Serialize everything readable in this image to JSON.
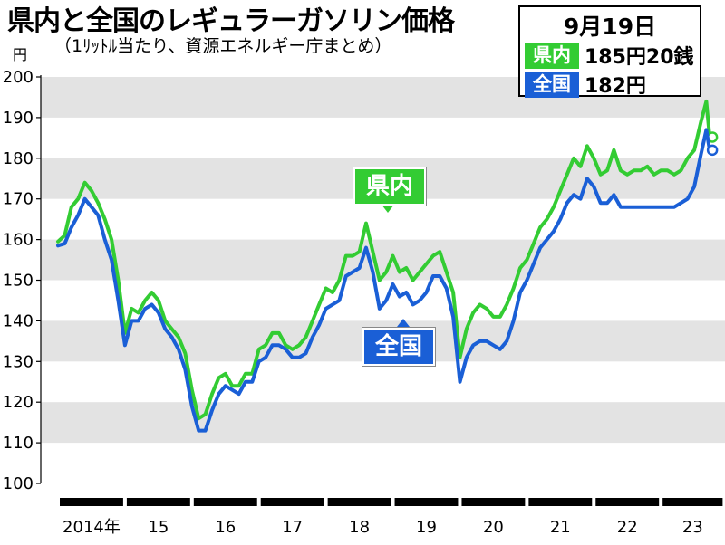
{
  "title": "県内と全国のレギュラーガソリン価格",
  "subtitle": "（1ﾘｯﾄﾙ当たり、資源エネルギー庁まとめ）",
  "unit": "円",
  "legend": {
    "date": "9月19日",
    "items": [
      {
        "name": "県内",
        "value": "185円20銭",
        "color": "#33cc33"
      },
      {
        "name": "全国",
        "value": "182円",
        "color": "#1a5fd6"
      }
    ]
  },
  "chart_data": {
    "type": "line",
    "ylim": [
      100,
      200
    ],
    "yticks": [
      100,
      110,
      120,
      130,
      140,
      150,
      160,
      170,
      180,
      190,
      200
    ],
    "xlim": [
      2014.0,
      2023.85
    ],
    "year_labels": [
      "2014年",
      "15",
      "16",
      "17",
      "18",
      "19",
      "20",
      "21",
      "22",
      "23"
    ],
    "grid": "alternating bands",
    "series": [
      {
        "name": "県内",
        "color": "#33cc33",
        "label": "県内",
        "points": [
          [
            2014.0,
            159.5
          ],
          [
            2014.1,
            161
          ],
          [
            2014.2,
            168
          ],
          [
            2014.3,
            170
          ],
          [
            2014.4,
            174
          ],
          [
            2014.5,
            172
          ],
          [
            2014.6,
            169
          ],
          [
            2014.7,
            165
          ],
          [
            2014.8,
            160
          ],
          [
            2014.9,
            150
          ],
          [
            2015.0,
            137
          ],
          [
            2015.1,
            143
          ],
          [
            2015.2,
            142
          ],
          [
            2015.3,
            145
          ],
          [
            2015.4,
            147
          ],
          [
            2015.5,
            145
          ],
          [
            2015.6,
            140
          ],
          [
            2015.7,
            138
          ],
          [
            2015.8,
            136
          ],
          [
            2015.9,
            132
          ],
          [
            2016.0,
            123
          ],
          [
            2016.1,
            116
          ],
          [
            2016.2,
            117
          ],
          [
            2016.3,
            122
          ],
          [
            2016.4,
            126
          ],
          [
            2016.5,
            127
          ],
          [
            2016.6,
            124
          ],
          [
            2016.7,
            124
          ],
          [
            2016.8,
            127
          ],
          [
            2016.9,
            127
          ],
          [
            2017.0,
            133
          ],
          [
            2017.1,
            134
          ],
          [
            2017.2,
            137
          ],
          [
            2017.3,
            137
          ],
          [
            2017.4,
            134
          ],
          [
            2017.5,
            133
          ],
          [
            2017.6,
            134
          ],
          [
            2017.7,
            136
          ],
          [
            2017.8,
            140
          ],
          [
            2017.9,
            144
          ],
          [
            2018.0,
            148
          ],
          [
            2018.1,
            147
          ],
          [
            2018.2,
            150
          ],
          [
            2018.3,
            156
          ],
          [
            2018.4,
            156
          ],
          [
            2018.5,
            157
          ],
          [
            2018.6,
            164
          ],
          [
            2018.7,
            157
          ],
          [
            2018.8,
            150
          ],
          [
            2018.9,
            152
          ],
          [
            2019.0,
            156
          ],
          [
            2019.1,
            152
          ],
          [
            2019.2,
            153
          ],
          [
            2019.3,
            150
          ],
          [
            2019.4,
            152
          ],
          [
            2019.5,
            154
          ],
          [
            2019.6,
            156
          ],
          [
            2019.7,
            157
          ],
          [
            2019.8,
            152
          ],
          [
            2019.9,
            147
          ],
          [
            2020.0,
            131
          ],
          [
            2020.1,
            138
          ],
          [
            2020.2,
            142
          ],
          [
            2020.3,
            144
          ],
          [
            2020.4,
            143
          ],
          [
            2020.5,
            141
          ],
          [
            2020.6,
            141
          ],
          [
            2020.7,
            144
          ],
          [
            2020.8,
            148
          ],
          [
            2020.9,
            153
          ],
          [
            2021.0,
            155
          ],
          [
            2021.1,
            159
          ],
          [
            2021.2,
            163
          ],
          [
            2021.3,
            165
          ],
          [
            2021.4,
            168
          ],
          [
            2021.5,
            172
          ],
          [
            2021.6,
            176
          ],
          [
            2021.7,
            180
          ],
          [
            2021.8,
            178
          ],
          [
            2021.9,
            183
          ],
          [
            2022.0,
            180
          ],
          [
            2022.1,
            176
          ],
          [
            2022.2,
            177
          ],
          [
            2022.3,
            182
          ],
          [
            2022.4,
            177
          ],
          [
            2022.5,
            176
          ],
          [
            2022.6,
            177
          ],
          [
            2022.7,
            177
          ],
          [
            2022.8,
            178
          ],
          [
            2022.9,
            176
          ],
          [
            2023.0,
            177
          ],
          [
            2023.1,
            177
          ],
          [
            2023.2,
            176
          ],
          [
            2023.3,
            177
          ],
          [
            2023.4,
            180
          ],
          [
            2023.5,
            182
          ],
          [
            2023.6,
            189
          ],
          [
            2023.68,
            194
          ],
          [
            2023.73,
            185.2
          ]
        ]
      },
      {
        "name": "全国",
        "color": "#1a5fd6",
        "label": "全国",
        "points": [
          [
            2014.0,
            158.5
          ],
          [
            2014.1,
            159
          ],
          [
            2014.2,
            163
          ],
          [
            2014.3,
            166
          ],
          [
            2014.4,
            170
          ],
          [
            2014.5,
            168
          ],
          [
            2014.6,
            166
          ],
          [
            2014.7,
            160
          ],
          [
            2014.8,
            155
          ],
          [
            2014.9,
            145
          ],
          [
            2015.0,
            134
          ],
          [
            2015.1,
            140
          ],
          [
            2015.2,
            140
          ],
          [
            2015.3,
            143
          ],
          [
            2015.4,
            144
          ],
          [
            2015.5,
            142
          ],
          [
            2015.6,
            138
          ],
          [
            2015.7,
            136
          ],
          [
            2015.8,
            133
          ],
          [
            2015.9,
            128
          ],
          [
            2016.0,
            119
          ],
          [
            2016.1,
            113
          ],
          [
            2016.2,
            113
          ],
          [
            2016.3,
            118
          ],
          [
            2016.4,
            122
          ],
          [
            2016.5,
            124
          ],
          [
            2016.6,
            123
          ],
          [
            2016.7,
            122
          ],
          [
            2016.8,
            125
          ],
          [
            2016.9,
            125
          ],
          [
            2017.0,
            130
          ],
          [
            2017.1,
            131
          ],
          [
            2017.2,
            134
          ],
          [
            2017.3,
            134
          ],
          [
            2017.4,
            133
          ],
          [
            2017.5,
            131
          ],
          [
            2017.6,
            131
          ],
          [
            2017.7,
            132
          ],
          [
            2017.8,
            136
          ],
          [
            2017.9,
            139
          ],
          [
            2018.0,
            143
          ],
          [
            2018.1,
            144
          ],
          [
            2018.2,
            145
          ],
          [
            2018.3,
            151
          ],
          [
            2018.4,
            152
          ],
          [
            2018.5,
            153
          ],
          [
            2018.6,
            158
          ],
          [
            2018.7,
            152
          ],
          [
            2018.8,
            143
          ],
          [
            2018.9,
            145
          ],
          [
            2019.0,
            149
          ],
          [
            2019.1,
            146
          ],
          [
            2019.2,
            147
          ],
          [
            2019.3,
            144
          ],
          [
            2019.4,
            145
          ],
          [
            2019.5,
            147
          ],
          [
            2019.6,
            151
          ],
          [
            2019.7,
            151
          ],
          [
            2019.8,
            148
          ],
          [
            2019.9,
            141
          ],
          [
            2020.0,
            125
          ],
          [
            2020.1,
            131
          ],
          [
            2020.2,
            134
          ],
          [
            2020.3,
            135
          ],
          [
            2020.4,
            135
          ],
          [
            2020.5,
            134
          ],
          [
            2020.6,
            133
          ],
          [
            2020.7,
            135
          ],
          [
            2020.8,
            140
          ],
          [
            2020.9,
            147
          ],
          [
            2021.0,
            150
          ],
          [
            2021.1,
            154
          ],
          [
            2021.2,
            158
          ],
          [
            2021.3,
            160
          ],
          [
            2021.4,
            162
          ],
          [
            2021.5,
            165
          ],
          [
            2021.6,
            169
          ],
          [
            2021.7,
            171
          ],
          [
            2021.8,
            170
          ],
          [
            2021.9,
            175
          ],
          [
            2022.0,
            173
          ],
          [
            2022.1,
            169
          ],
          [
            2022.2,
            169
          ],
          [
            2022.3,
            171
          ],
          [
            2022.4,
            168
          ],
          [
            2022.5,
            168
          ],
          [
            2022.6,
            168
          ],
          [
            2022.7,
            168
          ],
          [
            2022.8,
            168
          ],
          [
            2022.9,
            168
          ],
          [
            2023.0,
            168
          ],
          [
            2023.1,
            168
          ],
          [
            2023.2,
            168
          ],
          [
            2023.3,
            169
          ],
          [
            2023.4,
            170
          ],
          [
            2023.5,
            173
          ],
          [
            2023.6,
            181
          ],
          [
            2023.68,
            187
          ],
          [
            2023.73,
            182
          ]
        ]
      }
    ]
  }
}
